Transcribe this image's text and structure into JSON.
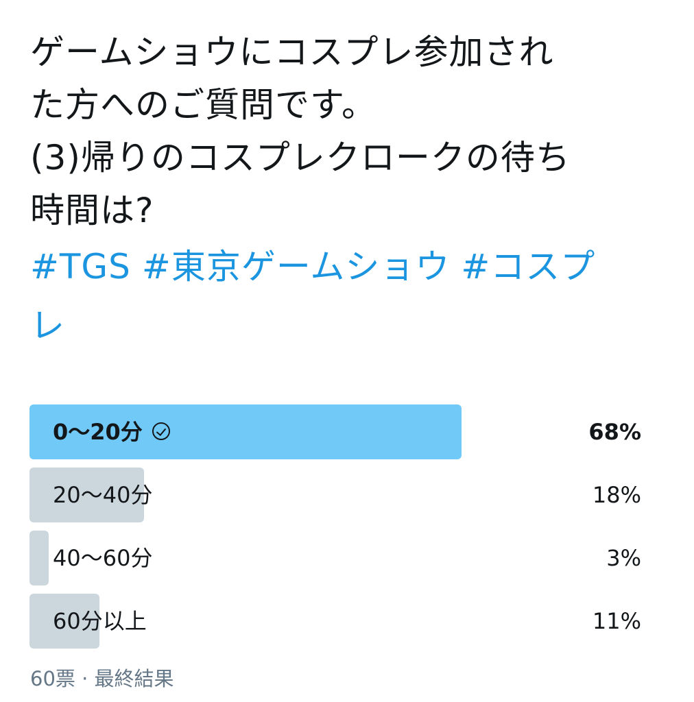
{
  "tweet": {
    "lines": [
      "ゲームショウにコスプレ参加され",
      "た方へのご質問です。",
      "(3)帰りのコスプレクロークの待ち",
      "時間は?"
    ],
    "hashtags_line1": [
      "#TGS",
      "#東京ゲームショウ",
      "#コスプ"
    ],
    "hashtags_line2": "レ"
  },
  "poll": {
    "options": [
      {
        "label": "0〜20分",
        "percent_text": "68%",
        "percent": 68,
        "winner": true,
        "icon": "check-circle-icon"
      },
      {
        "label": "20〜40分",
        "percent_text": "18%",
        "percent": 18,
        "winner": false
      },
      {
        "label": "40〜60分",
        "percent_text": "3%",
        "percent": 3,
        "winner": false
      },
      {
        "label": "60分以上",
        "percent_text": "11%",
        "percent": 11,
        "winner": false
      }
    ],
    "footer": "60票 · 最終結果",
    "colors": {
      "winner_bar": "#71c9f8",
      "other_bar": "#ccd6dd",
      "hashtag": "#1b95e0"
    }
  }
}
